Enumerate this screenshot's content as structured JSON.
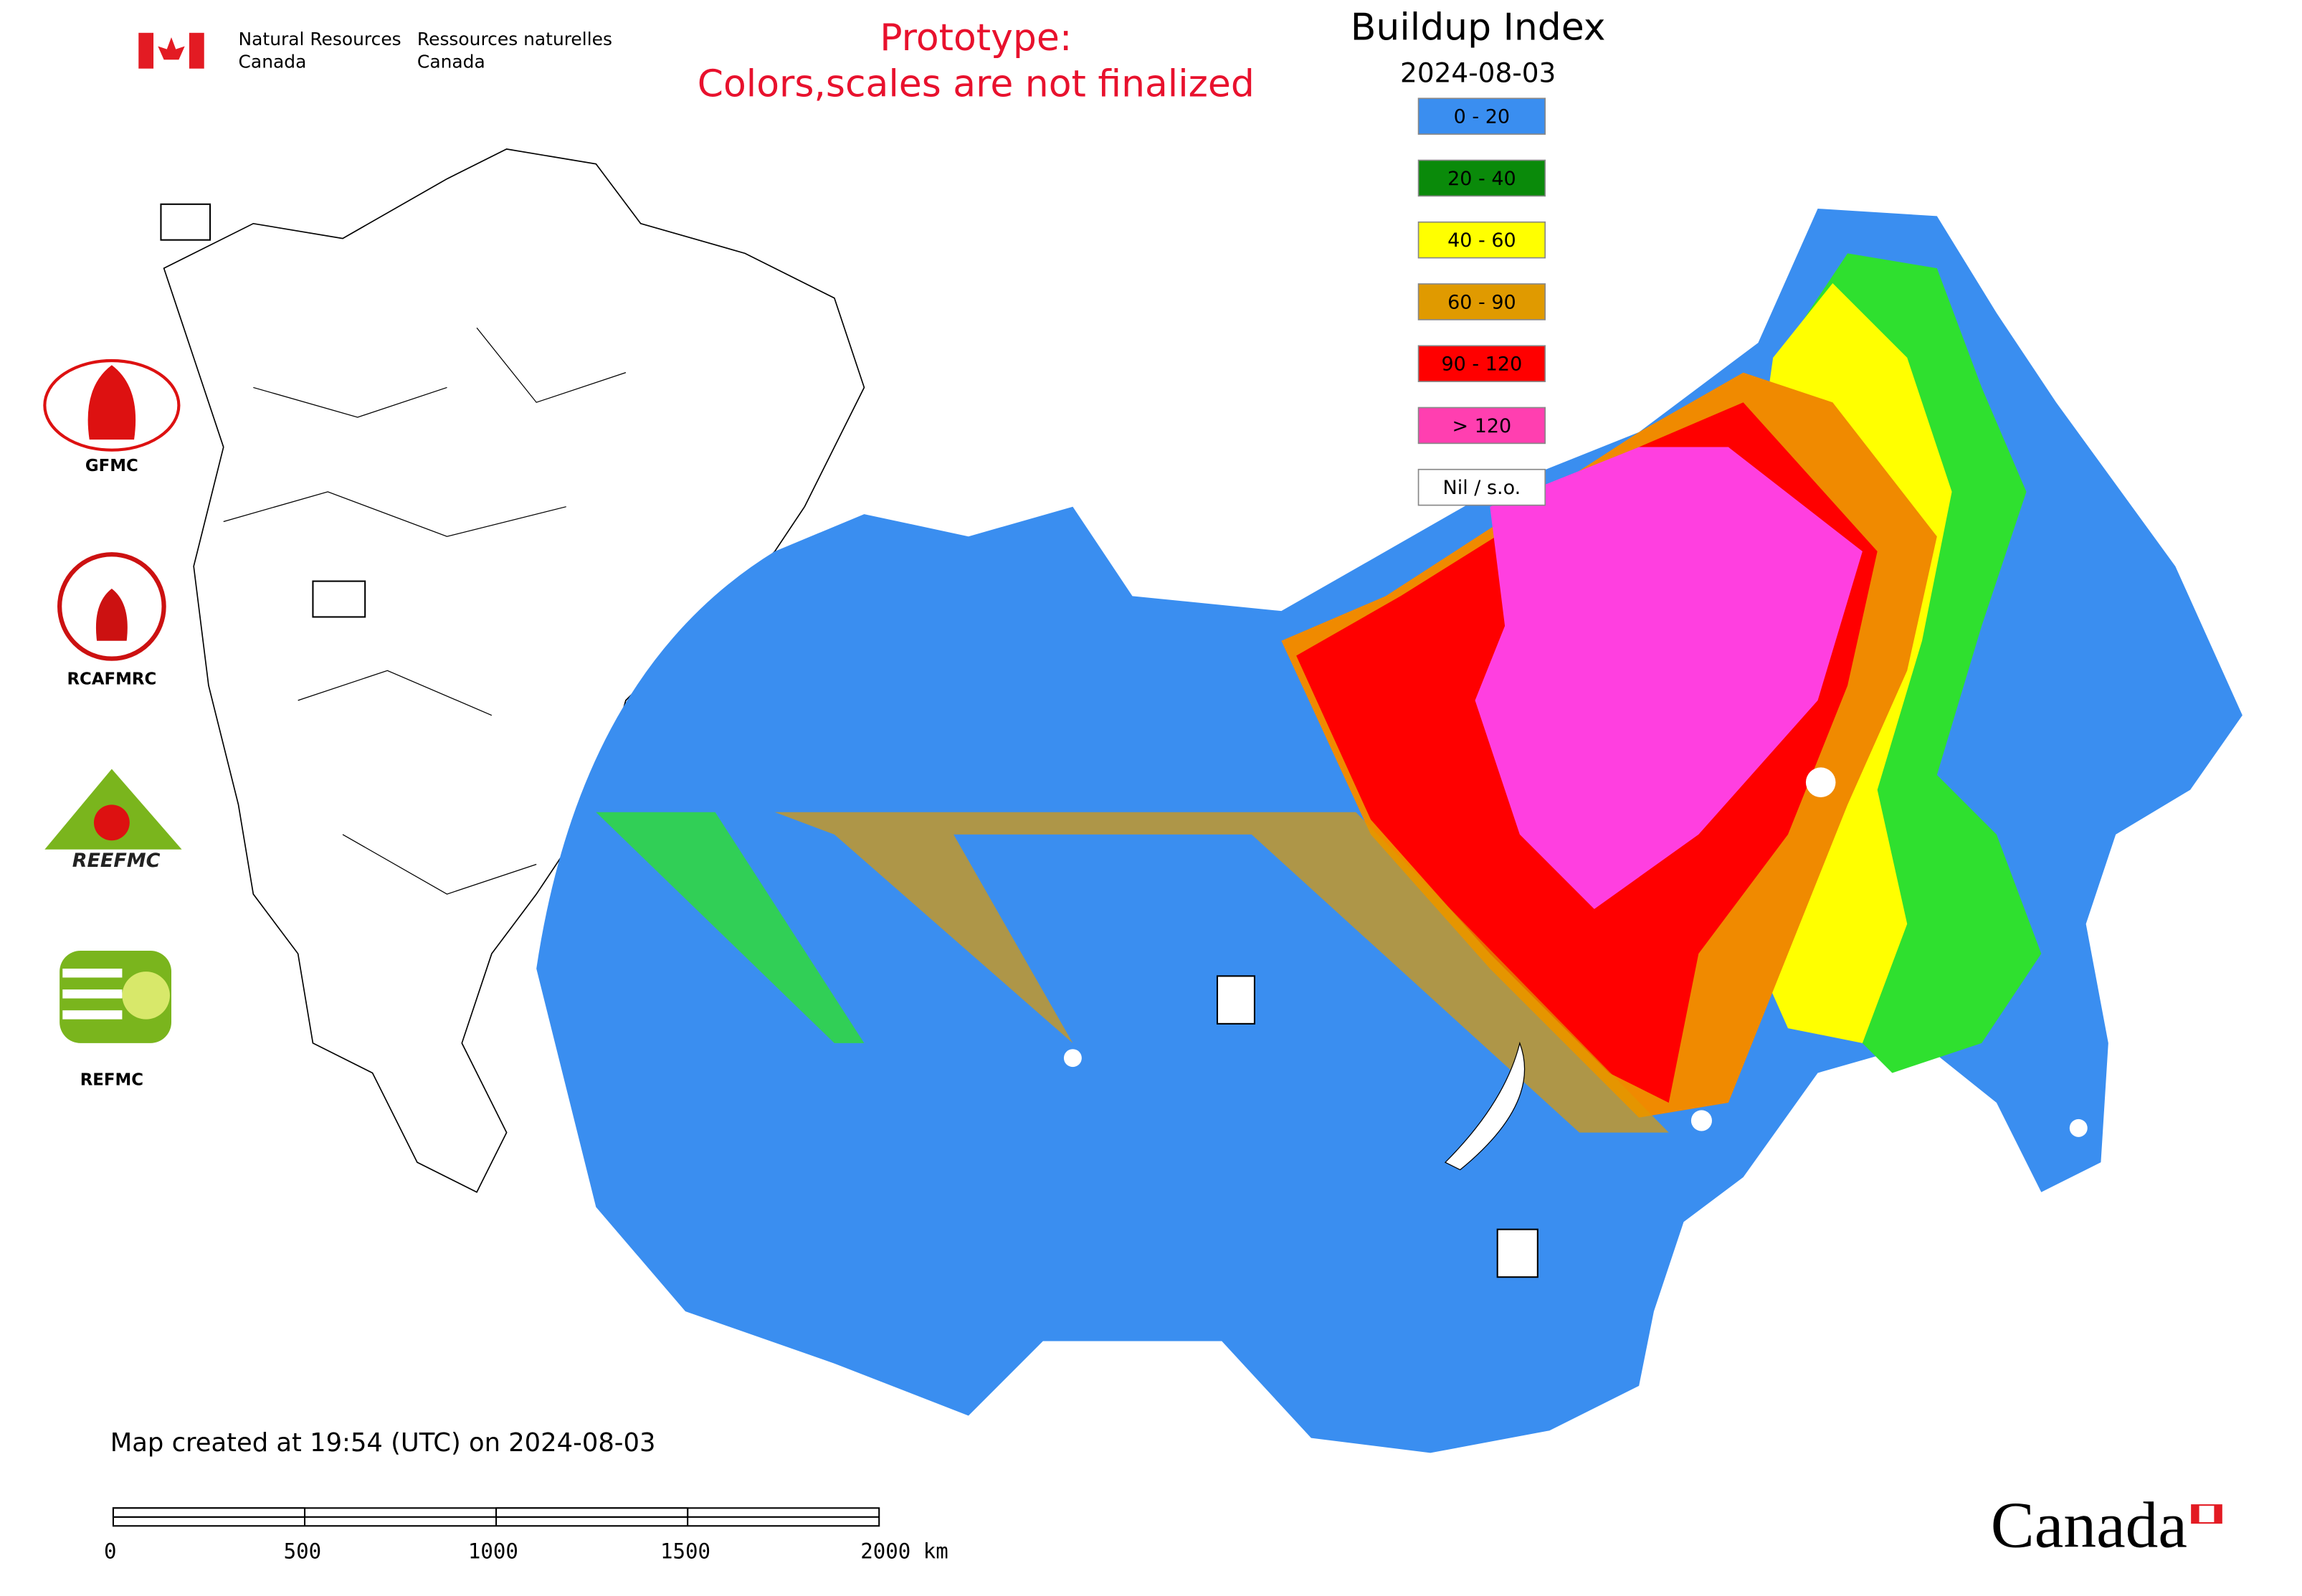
{
  "header": {
    "agency_en_line1": "Natural Resources",
    "agency_en_line2": "Canada",
    "agency_fr_line1": "Ressources naturelles",
    "agency_fr_line2": "Canada"
  },
  "notice": {
    "line1": "Prototype:",
    "line2": "Colors,scales are not finalized"
  },
  "legend": {
    "title": "Buildup Index",
    "date": "2024-08-03",
    "items": [
      {
        "label": "0 - 20",
        "color": "#3a8ef0"
      },
      {
        "label": "20 - 40",
        "color": "#0a8a0a"
      },
      {
        "label": "40 - 60",
        "color": "#ffff00"
      },
      {
        "label": "60 - 90",
        "color": "#e09a00"
      },
      {
        "label": "90 - 120",
        "color": "#ff0000"
      },
      {
        "label": "> 120",
        "color": "#ff3fb0"
      },
      {
        "label": "Nil / s.o.",
        "color": "#ffffff"
      }
    ]
  },
  "logos": [
    {
      "label": "GFMC"
    },
    {
      "label": "RCAFMRC"
    },
    {
      "label": "REEFMC"
    },
    {
      "label": "REFMC"
    }
  ],
  "footer": {
    "created": "Map created at 19:54 (UTC) on 2024-08-03",
    "scale_labels": [
      "0",
      "500",
      "1000",
      "1500",
      "2000 km"
    ],
    "wordmark": "Canada"
  }
}
